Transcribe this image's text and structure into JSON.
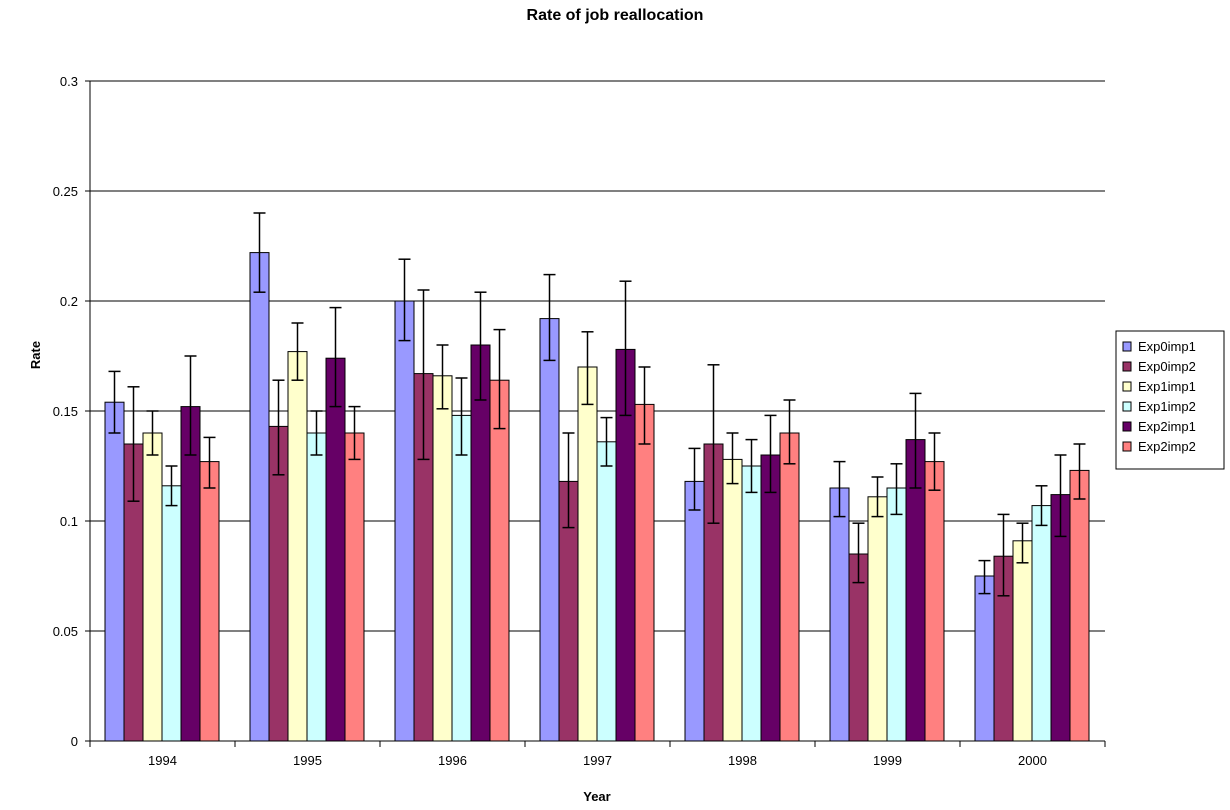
{
  "chart_data": {
    "type": "bar",
    "title": "Rate of job reallocation",
    "xlabel": "Year",
    "ylabel": "Rate",
    "ylim": [
      0,
      0.3
    ],
    "yticks": [
      "0",
      "0.05",
      "0.1",
      "0.15",
      "0.2",
      "0.25",
      "0.3"
    ],
    "grid": true,
    "legend_position": "right",
    "error_bars": true,
    "categories": [
      "1994",
      "1995",
      "1996",
      "1997",
      "1998",
      "1999",
      "2000"
    ],
    "series": [
      {
        "name": "Exp0imp1",
        "color": "#9999ff",
        "values": [
          0.154,
          0.222,
          0.2,
          0.192,
          0.118,
          0.115,
          0.075
        ],
        "err_low": [
          0.14,
          0.204,
          0.182,
          0.173,
          0.105,
          0.102,
          0.067
        ],
        "err_high": [
          0.168,
          0.24,
          0.219,
          0.212,
          0.133,
          0.127,
          0.082
        ]
      },
      {
        "name": "Exp0imp2",
        "color": "#993366",
        "values": [
          0.135,
          0.143,
          0.167,
          0.118,
          0.135,
          0.085,
          0.084
        ],
        "err_low": [
          0.109,
          0.121,
          0.128,
          0.097,
          0.099,
          0.072,
          0.066
        ],
        "err_high": [
          0.161,
          0.164,
          0.205,
          0.14,
          0.171,
          0.099,
          0.103
        ]
      },
      {
        "name": "Exp1imp1",
        "color": "#ffffcc",
        "values": [
          0.14,
          0.177,
          0.166,
          0.17,
          0.128,
          0.111,
          0.091
        ],
        "err_low": [
          0.13,
          0.164,
          0.151,
          0.153,
          0.117,
          0.102,
          0.081
        ],
        "err_high": [
          0.15,
          0.19,
          0.18,
          0.186,
          0.14,
          0.12,
          0.099
        ]
      },
      {
        "name": "Exp1imp2",
        "color": "#ccffff",
        "values": [
          0.116,
          0.14,
          0.148,
          0.136,
          0.125,
          0.115,
          0.107
        ],
        "err_low": [
          0.107,
          0.13,
          0.13,
          0.125,
          0.113,
          0.103,
          0.098
        ],
        "err_high": [
          0.125,
          0.15,
          0.165,
          0.147,
          0.137,
          0.126,
          0.116
        ]
      },
      {
        "name": "Exp2imp1",
        "color": "#660066",
        "values": [
          0.152,
          0.174,
          0.18,
          0.178,
          0.13,
          0.137,
          0.112
        ],
        "err_low": [
          0.13,
          0.152,
          0.155,
          0.148,
          0.113,
          0.115,
          0.093
        ],
        "err_high": [
          0.175,
          0.197,
          0.204,
          0.209,
          0.148,
          0.158,
          0.13
        ]
      },
      {
        "name": "Exp2imp2",
        "color": "#ff8080",
        "values": [
          0.127,
          0.14,
          0.164,
          0.153,
          0.14,
          0.127,
          0.123
        ],
        "err_low": [
          0.115,
          0.128,
          0.142,
          0.135,
          0.126,
          0.114,
          0.11
        ],
        "err_high": [
          0.138,
          0.152,
          0.187,
          0.17,
          0.155,
          0.14,
          0.135
        ]
      }
    ]
  }
}
